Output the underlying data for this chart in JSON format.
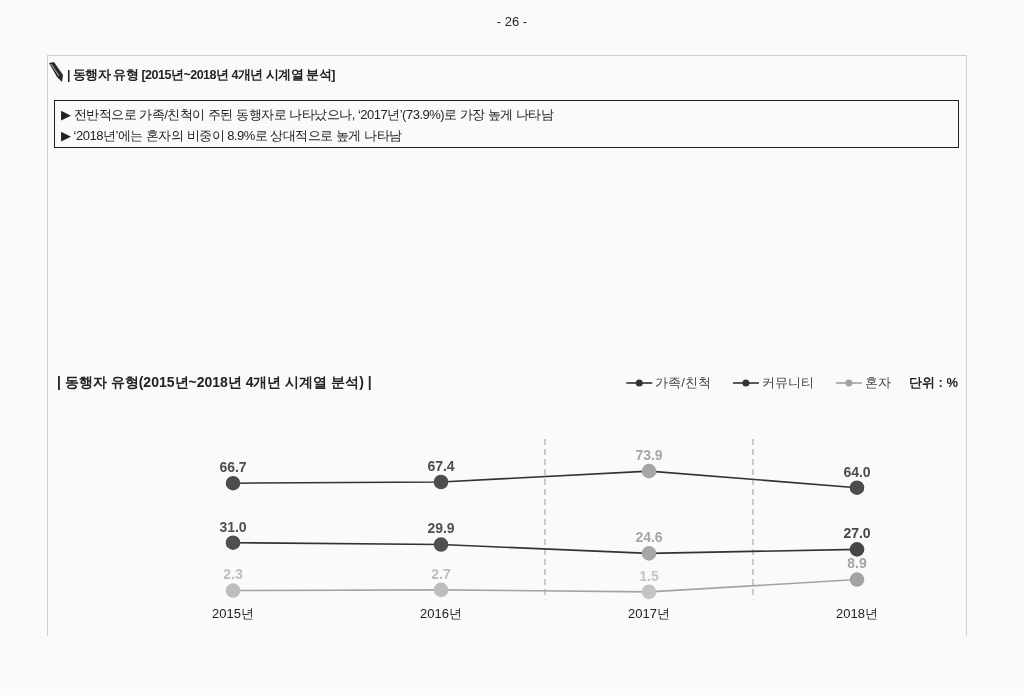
{
  "chart_data": {
    "type": "line",
    "title": "| 동행자 유형 [2015년~2018년 4개년 시계열 분석]",
    "subtitle": "| 동행자 유형(2015년~2018년 4개년 시계열 분석) |",
    "annotations": [
      "- 26 -",
      "▶ 전반적으로 가족/친척이 주된 동행자로 나타났으나, ‘2017년’(73.9%)로 가장 높게 나타남",
      "▶ ‘2018년’에는 혼자의 비중이 8.9%로 상대적으로 높게 나타남",
      "단위 : %"
    ],
    "x": [
      2015,
      2016,
      2017,
      2018
    ],
    "xlim": [
      2015,
      2018
    ],
    "xticks": [
      {
        "value": 2015,
        "label": "2015년"
      },
      {
        "value": 2016,
        "label": "2016년"
      },
      {
        "value": 2017,
        "label": "2017년"
      },
      {
        "value": 2018,
        "label": "2018년"
      }
    ],
    "series": [
      {
        "name": "가족/친척",
        "color": "#333333",
        "colors": [
          "#4d4d4d",
          "#4d4d4d",
          "#a6a6a6",
          "#4d4d4d"
        ],
        "values": [
          66.7,
          67.4,
          73.9,
          64.0
        ],
        "value_labels": [
          "66.7",
          "67.4",
          "73.9",
          "64.0"
        ]
      },
      {
        "name": "커뮤니티",
        "color": "#333333",
        "colors": [
          "#505050",
          "#505050",
          "#a6a6a6",
          "#464646"
        ],
        "values": [
          31.0,
          29.9,
          24.6,
          27.0
        ],
        "value_labels": [
          "31.0",
          "29.9",
          "24.6",
          "27.0"
        ]
      },
      {
        "name": "혼자",
        "color": "#a3a3a3",
        "colors": [
          "#bdbdbd",
          "#bdbdbd",
          "#c4c4c4",
          "#a3a3a3"
        ],
        "values": [
          2.3,
          2.7,
          1.5,
          8.9
        ],
        "value_labels": [
          "2.3",
          "2.7",
          "1.5",
          "8.9"
        ]
      }
    ],
    "ref_lines": [
      {
        "axis": "x",
        "value": 2016.5,
        "color": "#9a9a9a",
        "line_style": "dashed"
      },
      {
        "axis": "x",
        "value": 2017.5,
        "color": "#9a9a9a",
        "line_style": "dashed"
      }
    ],
    "marker": "circle",
    "line_style": "solid",
    "legend": "top right",
    "tick_labels": "x"
  }
}
